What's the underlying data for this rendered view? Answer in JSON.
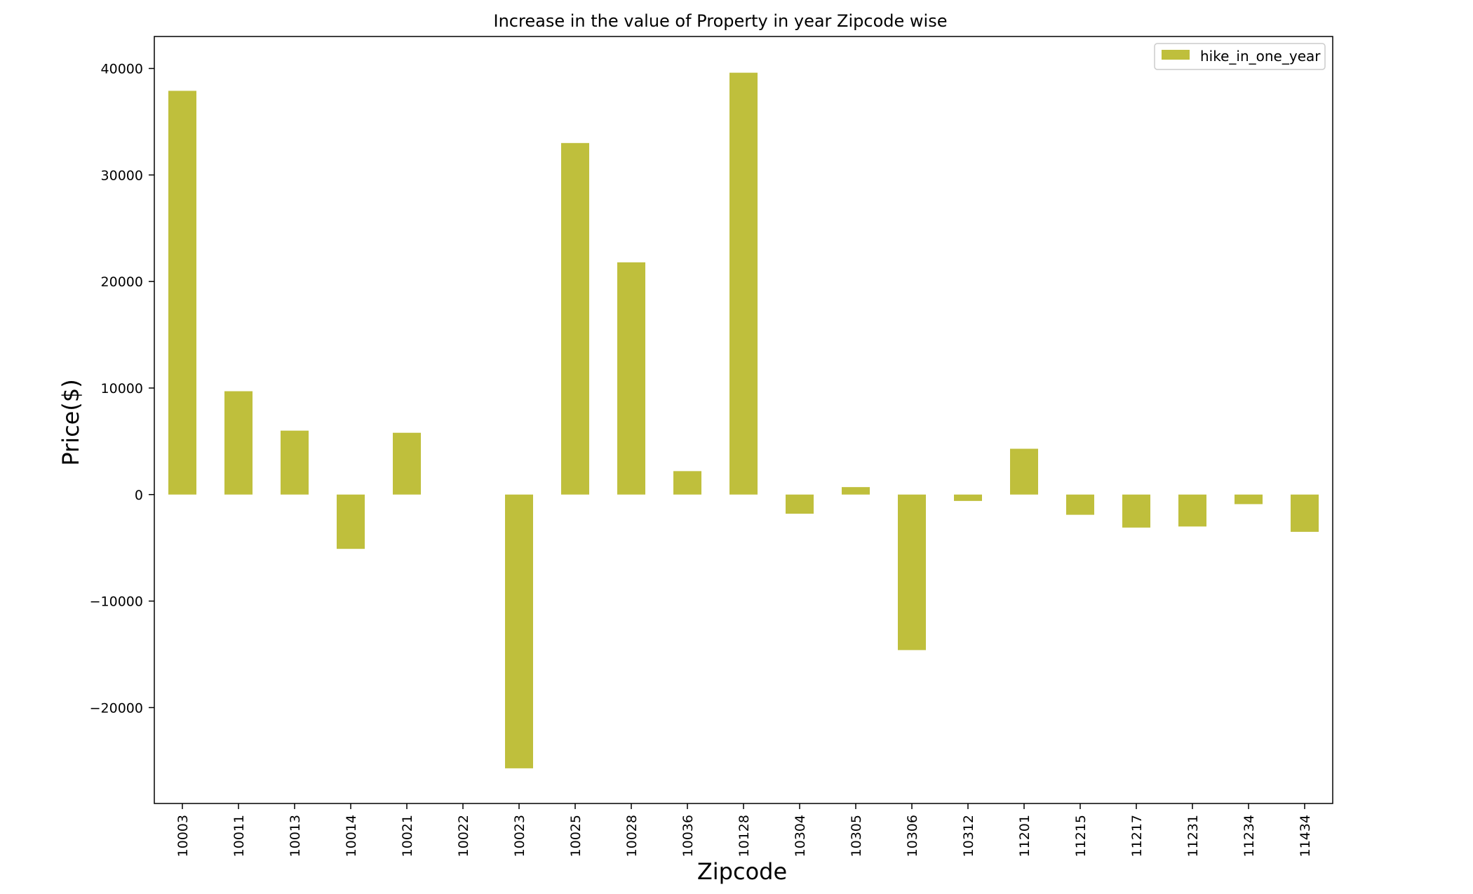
{
  "chart_data": {
    "type": "bar",
    "title": "Increase in the value of Property in year Zipcode wise",
    "xlabel": "Zipcode",
    "ylabel": "Price($)",
    "categories": [
      "10003",
      "10011",
      "10013",
      "10014",
      "10021",
      "10022",
      "10023",
      "10025",
      "10028",
      "10036",
      "10128",
      "10304",
      "10305",
      "10306",
      "10312",
      "11201",
      "11215",
      "11217",
      "11231",
      "11234",
      "11434"
    ],
    "series": [
      {
        "name": "hike_in_one_year",
        "color": "#bfbf3c",
        "values": [
          37900,
          9700,
          6000,
          -5100,
          5800,
          0,
          -25700,
          33000,
          21800,
          2200,
          39600,
          -1800,
          700,
          -14600,
          -600,
          4300,
          -1900,
          -3100,
          -3000,
          -900,
          -3500
        ]
      }
    ],
    "ylim": [
      -29000,
      43000
    ],
    "yticks": [
      -20000,
      -10000,
      0,
      10000,
      20000,
      30000,
      40000
    ],
    "ytick_labels": [
      "−20000",
      "−10000",
      "0",
      "10000",
      "20000",
      "30000",
      "40000"
    ],
    "grid": false,
    "legend_position": "top-right"
  }
}
